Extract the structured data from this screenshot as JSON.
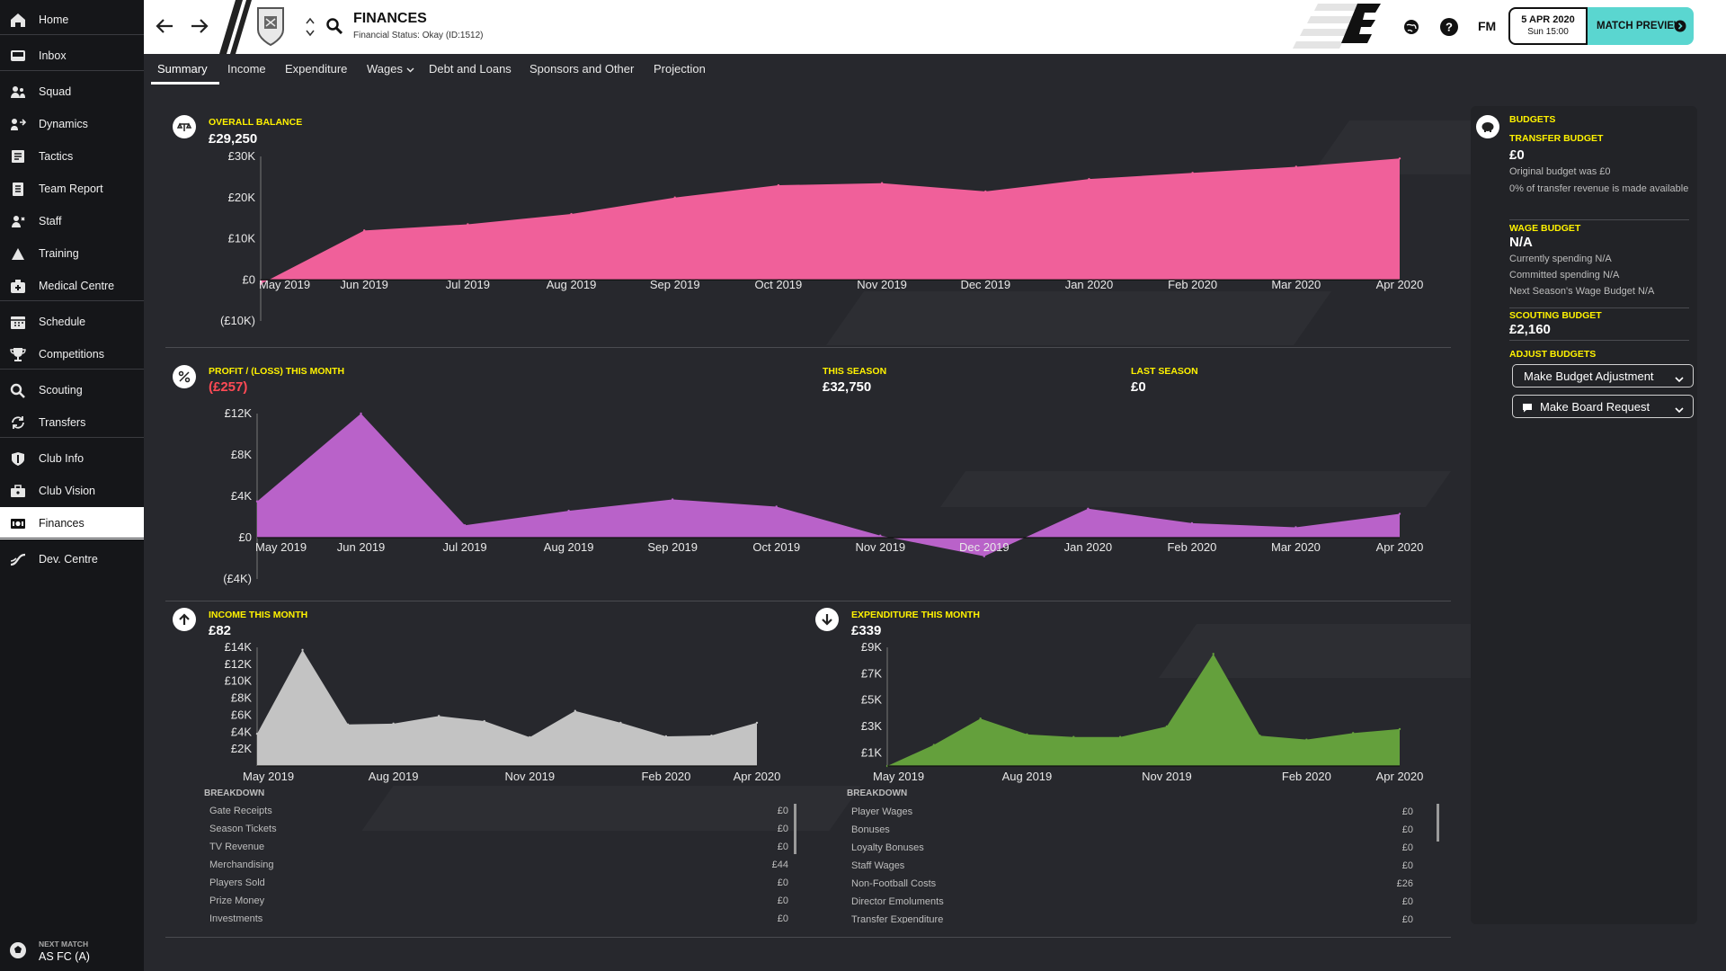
{
  "sidebar": {
    "items": [
      {
        "label": "Home",
        "icon": "home-icon"
      },
      {
        "label": "Inbox",
        "icon": "inbox-icon"
      },
      {
        "label": "Squad",
        "icon": "squad-icon"
      },
      {
        "label": "Dynamics",
        "icon": "dynamics-icon"
      },
      {
        "label": "Tactics",
        "icon": "tactics-icon"
      },
      {
        "label": "Team Report",
        "icon": "team-report-icon"
      },
      {
        "label": "Staff",
        "icon": "staff-icon"
      },
      {
        "label": "Training",
        "icon": "training-icon"
      },
      {
        "label": "Medical Centre",
        "icon": "medical-icon"
      },
      {
        "label": "Schedule",
        "icon": "calendar-icon"
      },
      {
        "label": "Competitions",
        "icon": "trophy-icon"
      },
      {
        "label": "Scouting",
        "icon": "search-icon"
      },
      {
        "label": "Transfers",
        "icon": "transfer-icon"
      },
      {
        "label": "Club Info",
        "icon": "shield-icon"
      },
      {
        "label": "Club Vision",
        "icon": "briefcase-icon"
      },
      {
        "label": "Finances",
        "icon": "money-icon"
      },
      {
        "label": "Dev. Centre",
        "icon": "dev-centre-icon"
      }
    ],
    "active": "Finances",
    "next_match_label": "NEXT MATCH",
    "next_match_value": "AS FC (A)"
  },
  "header": {
    "title": "FINANCES",
    "subtitle": "Financial Status: Okay (ID:1512)",
    "date": "5 APR 2020",
    "time": "Sun 15:00",
    "match_preview": "MATCH PREVIEW",
    "fm_label": "FM"
  },
  "tabs": [
    "Summary",
    "Income",
    "Expenditure",
    "Wages",
    "Debt and Loans",
    "Sponsors and Other",
    "Projection"
  ],
  "balance": {
    "caption": "OVERALL BALANCE",
    "value": "£29,250"
  },
  "profit": {
    "caption": "PROFIT / (LOSS) THIS MONTH",
    "value": "(£257)",
    "season_caption": "THIS SEASON",
    "season_value": "£32,750",
    "last_caption": "LAST SEASON",
    "last_value": "£0"
  },
  "income": {
    "caption": "INCOME THIS MONTH",
    "value": "£82",
    "breakdown_title": "BREAKDOWN",
    "rows": [
      {
        "label": "Gate Receipts",
        "amount": "£0"
      },
      {
        "label": "Season Tickets",
        "amount": "£0"
      },
      {
        "label": "TV Revenue",
        "amount": "£0"
      },
      {
        "label": "Merchandising",
        "amount": "£44"
      },
      {
        "label": "Players Sold",
        "amount": "£0"
      },
      {
        "label": "Prize Money",
        "amount": "£0"
      },
      {
        "label": "Investments",
        "amount": "£0"
      }
    ]
  },
  "expenditure": {
    "caption": "EXPENDITURE THIS MONTH",
    "value": "£339",
    "breakdown_title": "BREAKDOWN",
    "rows": [
      {
        "label": "Player Wages",
        "amount": "£0"
      },
      {
        "label": "Bonuses",
        "amount": "£0"
      },
      {
        "label": "Loyalty Bonuses",
        "amount": "£0"
      },
      {
        "label": "Staff Wages",
        "amount": "£0"
      },
      {
        "label": "Non-Football Costs",
        "amount": "£26"
      },
      {
        "label": "Director Emoluments",
        "amount": "£0"
      },
      {
        "label": "Transfer Expenditure",
        "amount": "£0"
      }
    ]
  },
  "budgets": {
    "title": "BUDGETS",
    "transfer_caption": "TRANSFER BUDGET",
    "transfer_value": "£0",
    "transfer_note1": "Original budget was £0",
    "transfer_note2": "0% of transfer revenue is made available",
    "wage_caption": "WAGE BUDGET",
    "wage_value": "N/A",
    "wage_note1": "Currently spending N/A",
    "wage_note2": "Committed spending N/A",
    "wage_note3": "Next Season's Wage Budget N/A",
    "scouting_caption": "SCOUTING BUDGET",
    "scouting_value": "£2,160",
    "adjust_caption": "ADJUST BUDGETS",
    "btn1": "Make Budget Adjustment",
    "btn2": "Make Board Request"
  },
  "chart_data": [
    {
      "type": "area",
      "id": "balance",
      "x": [
        "May 2019",
        "Jun 2019",
        "Jul 2019",
        "Aug 2019",
        "Sep 2019",
        "Oct 2019",
        "Nov 2019",
        "Dec 2019",
        "Jan 2020",
        "Feb 2020",
        "Mar 2020",
        "Apr 2020"
      ],
      "values": [
        -1000,
        12000,
        13500,
        16000,
        20000,
        23000,
        23500,
        21500,
        24500,
        26000,
        27500,
        29500
      ],
      "yticks": [
        "(£10K)",
        "£0",
        "£10K",
        "£20K",
        "£30K"
      ],
      "ylim": [
        -10000,
        30000
      ],
      "color": "#f0609a"
    },
    {
      "type": "area",
      "id": "profit",
      "x": [
        "May 2019",
        "Jun 2019",
        "Jul 2019",
        "Aug 2019",
        "Sep 2019",
        "Oct 2019",
        "Nov 2019",
        "Dec 2019",
        "Jan 2020",
        "Feb 2020",
        "Mar 2020",
        "Apr 2020"
      ],
      "values": [
        3500,
        12000,
        1200,
        2600,
        3700,
        3000,
        200,
        -1800,
        2800,
        1400,
        1000,
        2300
      ],
      "yticks": [
        "(£4K)",
        "£0",
        "£4K",
        "£8K",
        "£12K"
      ],
      "ylim": [
        -4000,
        12000
      ],
      "color": "#b962c9"
    },
    {
      "type": "area",
      "id": "income",
      "x": [
        "May 2019",
        "Jun 2019",
        "Jul 2019",
        "Aug 2019",
        "Sep 2019",
        "Oct 2019",
        "Nov 2019",
        "Dec 2019",
        "Jan 2020",
        "Feb 2020",
        "Mar 2020",
        "Apr 2020"
      ],
      "xticks": [
        "May 2019",
        "Aug 2019",
        "Nov 2019",
        "Feb 2020",
        "Apr 2020"
      ],
      "values": [
        3800,
        13700,
        4900,
        5000,
        5900,
        5300,
        3400,
        6500,
        5100,
        3500,
        3600,
        5100
      ],
      "yticks": [
        "£2K",
        "£4K",
        "£6K",
        "£8K",
        "£10K",
        "£12K",
        "£14K"
      ],
      "ylim": [
        0,
        14000
      ],
      "color": "#c3c3c3"
    },
    {
      "type": "area",
      "id": "expenditure",
      "x": [
        "May 2019",
        "Jun 2019",
        "Jul 2019",
        "Aug 2019",
        "Sep 2019",
        "Oct 2019",
        "Nov 2019",
        "Dec 2019",
        "Jan 2020",
        "Feb 2020",
        "Mar 2020",
        "Apr 2020"
      ],
      "xticks": [
        "May 2019",
        "Aug 2019",
        "Nov 2019",
        "Feb 2020",
        "Apr 2020"
      ],
      "values": [
        0,
        1600,
        3600,
        2400,
        2200,
        2200,
        3000,
        8500,
        2300,
        2000,
        2500,
        2800
      ],
      "yticks": [
        "£1K",
        "£3K",
        "£5K",
        "£7K",
        "£9K"
      ],
      "ylim": [
        0,
        9000
      ],
      "color": "#64a03c"
    }
  ]
}
